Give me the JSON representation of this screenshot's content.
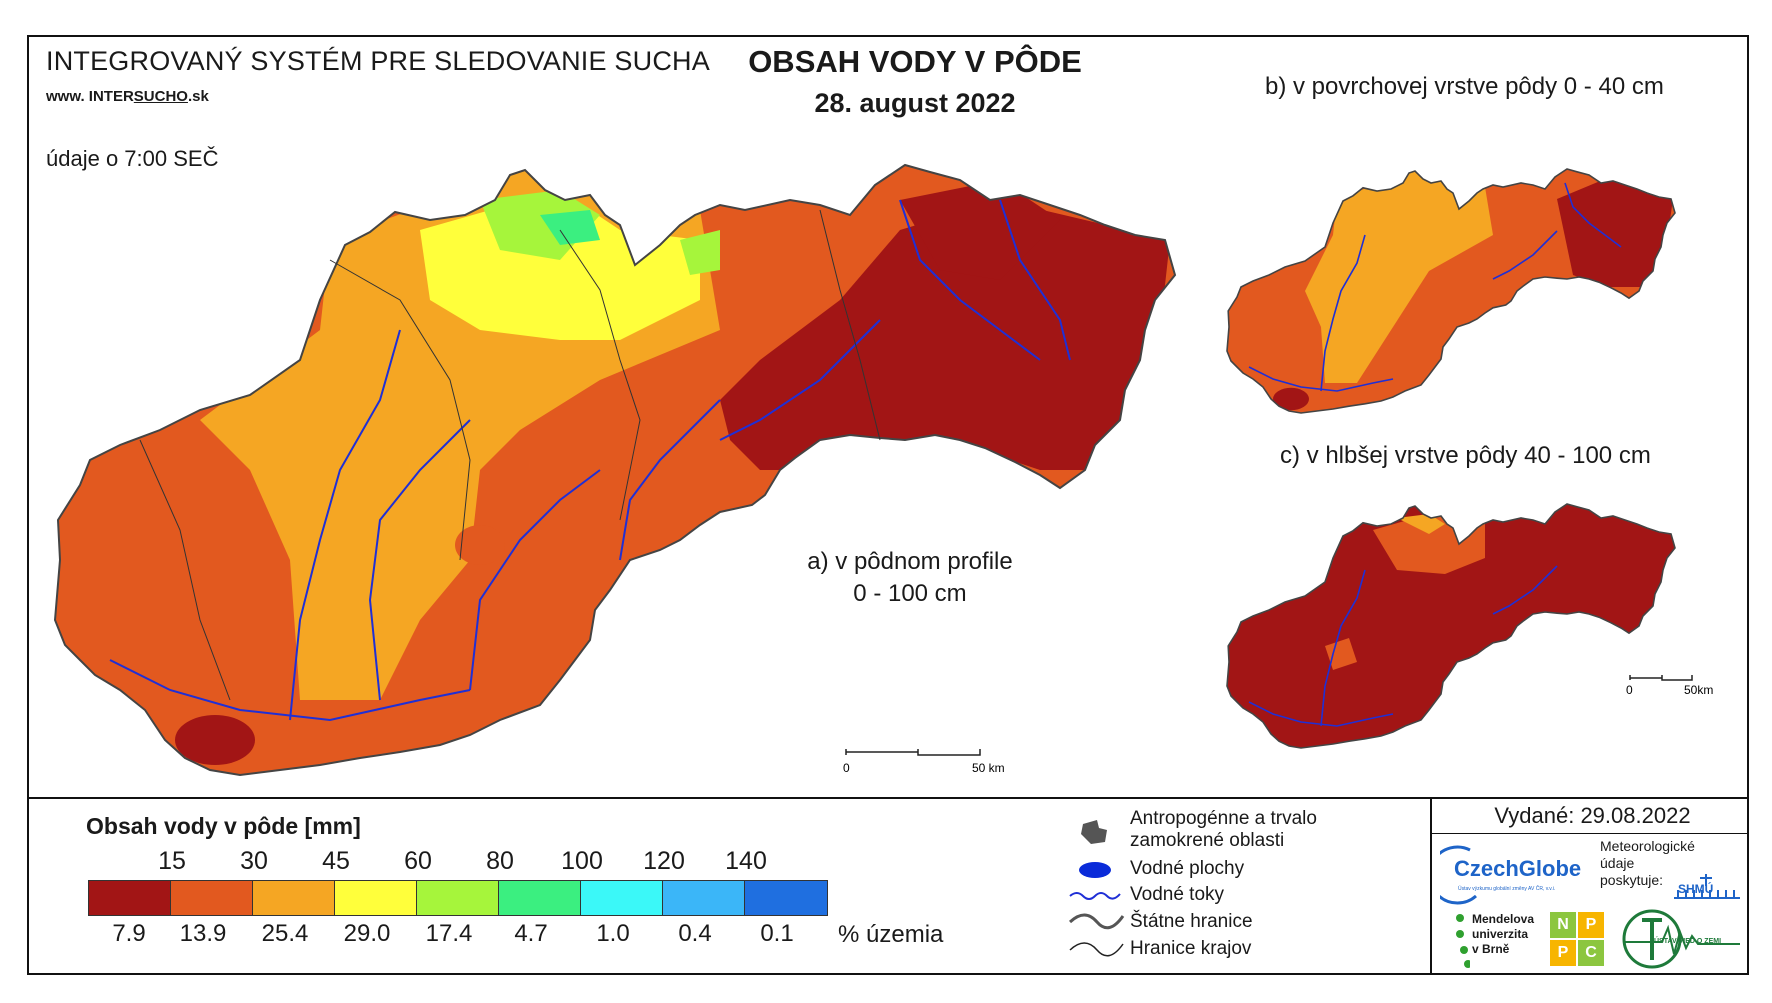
{
  "header": {
    "system_title": "INTEGROVANÝ SYSTÉM PRE SLEDOVANIE SUCHA",
    "website_prefix": "www. INTER",
    "website_highlight": "SUCHO",
    "website_suffix": ".sk",
    "time_note": "údaje o 7:00 SEČ",
    "main_title": "OBSAH VODY V PÔDE",
    "main_date": "28. august 2022"
  },
  "maps": {
    "a_label_line1": "a) v pôdnom profile",
    "a_label_line2": "0 - 100 cm",
    "b_label": "b) v povrchovej vrstve pôdy 0 - 40 cm",
    "c_label": "c) v hlbšej vrstve pôdy 40 - 100 cm",
    "scale_main_zero": "0",
    "scale_main_km": "50 km",
    "scale_small_zero": "0",
    "scale_small_km": "50km"
  },
  "legend": {
    "title": "Obsah vody v pôde  [mm]",
    "thresholds": [
      "15",
      "30",
      "45",
      "60",
      "80",
      "100",
      "120",
      "140"
    ],
    "colors": [
      "#a21515",
      "#e2591f",
      "#f5a623",
      "#ffff3b",
      "#a6f53b",
      "#3bef80",
      "#3bf8f8",
      "#3bb6f8",
      "#1f6fe0"
    ],
    "percentages": [
      "7.9",
      "13.9",
      "25.4",
      "29.0",
      "17.4",
      "4.7",
      "1.0",
      "0.4",
      "0.1"
    ],
    "pct_unit": "% územia"
  },
  "map_legend": {
    "anthropogenic_line1": "Antropogénne a trvalo",
    "anthropogenic_line2": "zamokrené oblasti",
    "water_bodies": "Vodné plochy",
    "water_streams": "Vodné toky",
    "state_border": "Štátne hranice",
    "region_border": "Hranice krajov"
  },
  "footer": {
    "issued": "Vydané: 29.08.2022",
    "czechglobe": "CzechGlobe",
    "czechglobe_sub": "Ústav výzkumu globální změny AV ČR, v.v.i.",
    "meteo_line1": "Meteorologické",
    "meteo_line2": "údaje",
    "meteo_line3": "poskytuje:",
    "shmu": "SHMÚ",
    "mendel_line1": "Mendelova",
    "mendel_line2": "univerzita",
    "mendel_line3": "v Brně",
    "nppc": [
      "N",
      "P",
      "P",
      "C"
    ],
    "uvz": "ÚSTAV VIED O ZEMI"
  }
}
